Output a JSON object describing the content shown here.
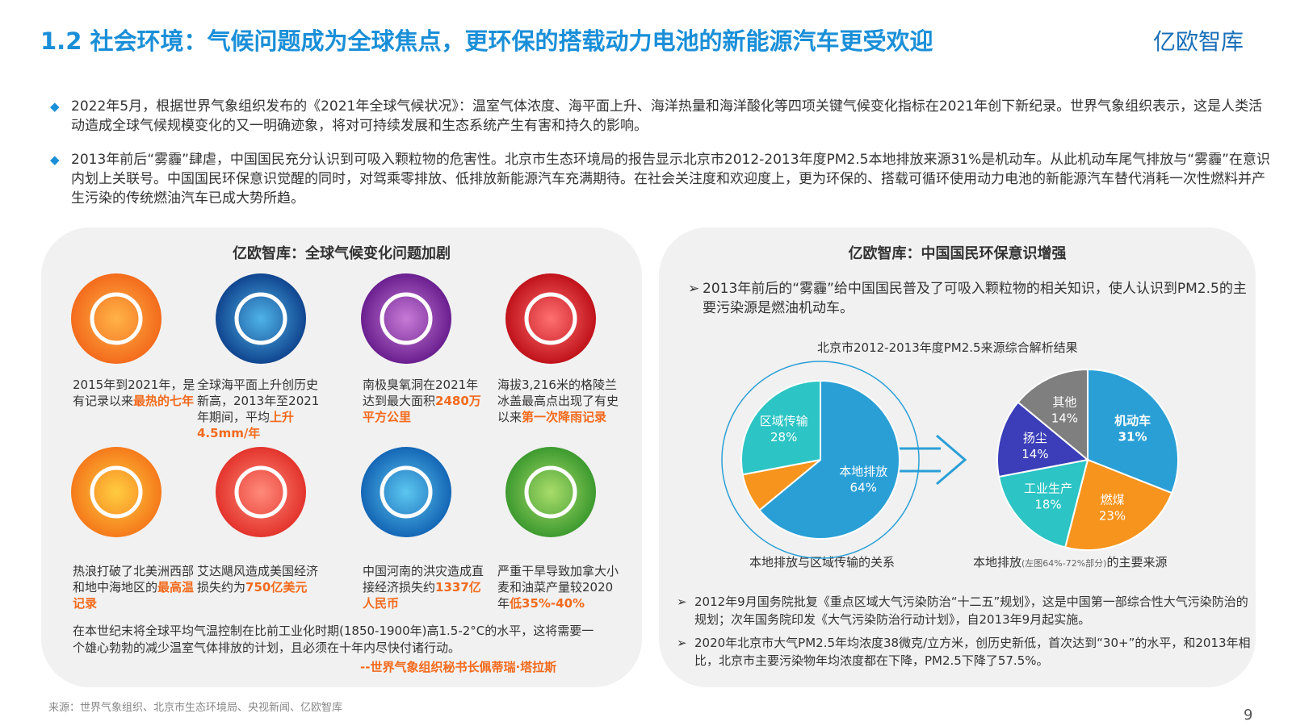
{
  "header": {
    "title": "1.2 社会环境：气候问题成为全球焦点，更环保的搭载动力电池的新能源汽车更受欢迎",
    "logo": "亿欧智库"
  },
  "bullets": [
    "2022年5月，根据世界气象组织发布的《2021年全球气候状况》：温室气体浓度、海平面上升、海洋热量和海洋酸化等四项关键气候变化指标在2021年创下新纪录。世界气象组织表示，这是人类活动造成全球气候规模变化的又一明确迹象，将对可持续发展和生态系统产生有害和持久的影响。",
    "2013年前后“雾霾”肆虐，中国国民充分认识到可吸入颗粒物的危害性。北京市生态环境局的报告显示北京市2012-2013年度PM2.5本地排放来源31%是机动车。从此机动车尾气排放与“雾霾”在意识内划上关联号。中国国民环保意识觉醒的同时，对驾乘零排放、低排放新能源汽车充满期待。在社会关注度和欢迎度上，更为环保的、搭载可循环使用动力电池的新能源汽车替代消耗一次性燃料并产生污染的传统燃油汽车已成大势所趋。"
  ],
  "left_panel": {
    "title": "亿欧智库：全球气候变化问题加剧",
    "items": [
      {
        "text": "2015年到2021年，是有记录以来",
        "highlight": "最热的七年"
      },
      {
        "text": "全球海平面上升创历史新高，2013年至2021年期间，平均",
        "highlight": "上升4.5mm/年"
      },
      {
        "text": "南极臭氧洞在2021年达到最大面积",
        "highlight": "2480万平方公里"
      },
      {
        "text": "海拔3,216米的格陵兰冰盖最高点出现了有史以来",
        "highlight": "第一次降雨记录"
      },
      {
        "text": "热浪打破了北美洲西部和地中海地区的",
        "highlight": "最高温记录"
      },
      {
        "text": "艾达飓风造成美国经济损失约为",
        "highlight": "750亿美元"
      },
      {
        "text": "中国河南的洪灾造成直接经济损失约",
        "highlight": "1337亿人民币"
      },
      {
        "text": "严重干旱导致加拿大小麦和油菜产量较2020年",
        "highlight": "低35%-40%"
      }
    ],
    "quote": "在本世纪末将全球平均气温控制在比前工业化时期(1850-1900年)高1.5-2°C的水平，这将需要一个雄心勃勃的减少温室气体排放的计划，且必须在十年内尽快付诸行动。",
    "quote_author": "--世界气象组织秘书长佩蒂瑞·塔拉斯"
  },
  "right_panel": {
    "title": "亿欧智库：中国国民环保意识增强",
    "intro": "2013年前后的“雾霾”给中国国民普及了可吸入颗粒物的相关知识，使人认识到PM2.5的主要污染源是燃油机动车。",
    "chart_title": "北京市2012-2013年度PM2.5来源综合解析结果",
    "notes": [
      "2012年9月国务院批复《重点区域大气污染防治“十二五”规划》，这是中国第一部综合性大气污染防治的规划；次年国务院印发《大气污染防治行动计划》，自2013年9月起实施。",
      "2020年北京市大气PM2.5年均浓度38微克/立方米，创历史新低，首次达到“30+”的水平，和2013年相比，北京市主要污染物年均浓度都在下降，PM2.5下降了57.5%。"
    ]
  },
  "chart_data": [
    {
      "type": "pie",
      "caption": "本地排放与区域传输的关系",
      "categories": [
        "本地排放",
        null,
        "区域传输"
      ],
      "values": [
        64,
        8,
        28
      ],
      "value_labels": [
        "64%",
        null,
        "28%"
      ],
      "colors": [
        "#2a9fd6",
        "#f7941d",
        "#2cc4c4"
      ]
    },
    {
      "type": "pie",
      "caption": "本地排放",
      "caption_note": "(左图64%-72%部分)",
      "caption_end": "的主要来源",
      "categories": [
        "机动车",
        "燃煤",
        "工业生产",
        "扬尘",
        "其他"
      ],
      "values": [
        31,
        23,
        18,
        14,
        14
      ],
      "value_labels": [
        "31%",
        "23%",
        "18%",
        "14%",
        "14%"
      ],
      "colors": [
        "#2a9fd6",
        "#f7941d",
        "#2cc4c4",
        "#3b3eb8",
        "#7f7f7f"
      ]
    }
  ],
  "footer": {
    "source": "来源：世界气象组织、北京市生态环境局、央视新闻、亿欧智库",
    "page": "9"
  }
}
